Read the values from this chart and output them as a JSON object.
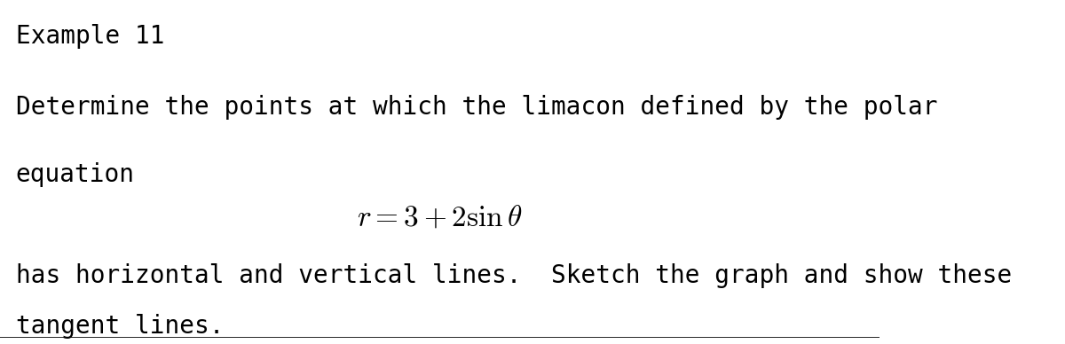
{
  "title": "Example 11",
  "line1": "Determine the points at which the limacon defined by the polar",
  "line2": "equation",
  "equation": "r = 3 + 2\\,\\sin\\,\\theta",
  "line3": "has horizontal and vertical lines.  Sketch the graph and show these",
  "line4": "tangent lines.",
  "bg_color": "#ffffff",
  "text_color": "#000000",
  "title_fontsize": 20,
  "body_fontsize": 20,
  "eq_fontsize": 22
}
